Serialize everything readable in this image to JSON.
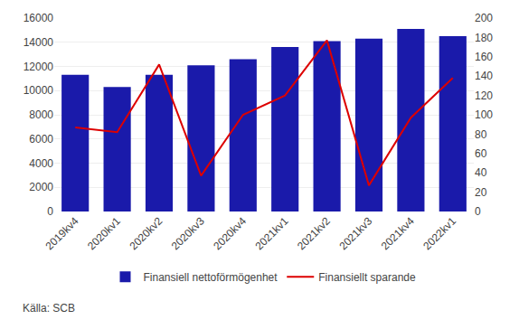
{
  "chart_data": {
    "type": "bar",
    "categories": [
      "2019kv4",
      "2020kv1",
      "2020kv2",
      "2020kv3",
      "2020kv4",
      "2021kv1",
      "2021kv2",
      "2021kv3",
      "2021kv4",
      "2022kv1"
    ],
    "series": [
      {
        "name": "Finansiell nettoförmögenhet",
        "type": "bar",
        "color": "#1a1aaa",
        "values": [
          11300,
          10300,
          11300,
          12100,
          12600,
          13600,
          14100,
          14300,
          15100,
          14500
        ]
      },
      {
        "name": "Finansiellt sparande",
        "type": "line",
        "axis": "y2",
        "color": "#dd0000",
        "values": [
          87,
          82,
          152,
          37,
          100,
          120,
          177,
          27,
          97,
          138
        ]
      }
    ],
    "ylim": [
      0,
      16000
    ],
    "yticks": [
      0,
      2000,
      4000,
      6000,
      8000,
      10000,
      12000,
      14000,
      16000
    ],
    "y2lim": [
      0,
      200
    ],
    "y2ticks": [
      0,
      20,
      40,
      60,
      80,
      100,
      120,
      140,
      160,
      180,
      200
    ],
    "grid": true,
    "legend": "bottom",
    "annotations": [
      "Källa: SCB"
    ]
  }
}
